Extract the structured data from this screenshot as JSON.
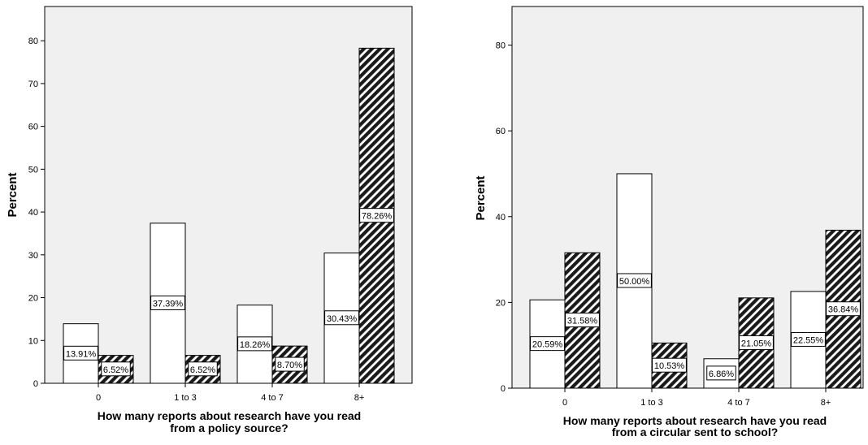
{
  "chart_data": [
    {
      "type": "bar",
      "title": "",
      "xlabel_lines": [
        "How many reports about research have you read",
        "from a policy source?"
      ],
      "ylabel": "Percent",
      "categories": [
        "0",
        "1 to 3",
        "4 to 7",
        "8+"
      ],
      "ylim": [
        0,
        88
      ],
      "yticks": [
        0,
        10,
        20,
        30,
        40,
        50,
        60,
        70,
        80
      ],
      "grid": false,
      "series": [
        {
          "fill": "white",
          "values": [
            13.91,
            37.39,
            18.26,
            30.43
          ],
          "labels": [
            "13.91%",
            "37.39%",
            "18.26%",
            "30.43%"
          ]
        },
        {
          "fill": "hatched",
          "values": [
            6.52,
            6.52,
            8.7,
            78.26
          ],
          "labels": [
            "6.52%",
            "6.52%",
            "8.70%",
            "78.26%"
          ]
        }
      ]
    },
    {
      "type": "bar",
      "title": "",
      "xlabel_lines": [
        "How many reports about research have you read",
        "from a circular sent to school?"
      ],
      "ylabel": "Percent",
      "categories": [
        "0",
        "1 to 3",
        "4 to 7",
        "8+"
      ],
      "ylim": [
        0,
        89
      ],
      "yticks": [
        0,
        20,
        40,
        60,
        80
      ],
      "grid": false,
      "series": [
        {
          "fill": "white",
          "values": [
            20.59,
            50.0,
            6.86,
            22.55
          ],
          "labels": [
            "20.59%",
            "50.00%",
            "6.86%",
            "22.55%"
          ]
        },
        {
          "fill": "hatched",
          "values": [
            31.58,
            10.53,
            21.05,
            36.84
          ],
          "labels": [
            "31.58%",
            "10.53%",
            "21.05%",
            "36.84%"
          ]
        }
      ]
    }
  ],
  "colors": {
    "plot_bg": "#f0f0f0",
    "bar_white": "#ffffff",
    "bar_dark": "#1a1a1a",
    "axis": "#000000"
  }
}
